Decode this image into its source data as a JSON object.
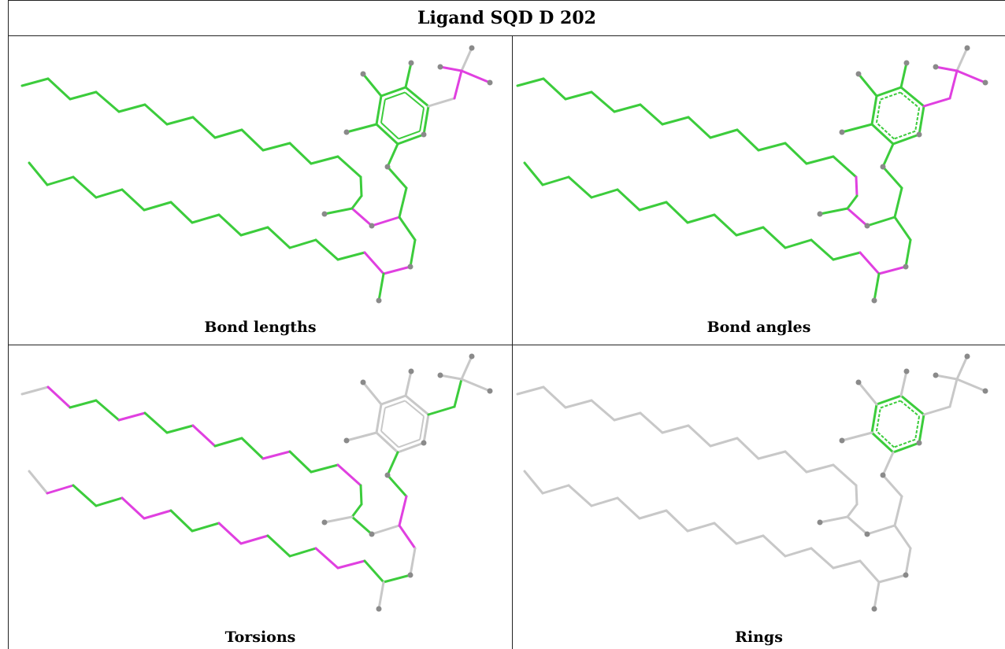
{
  "title": "Ligand SQD D 202",
  "panels": [
    {
      "caption": "Bond lengths",
      "scheme": "lengths"
    },
    {
      "caption": "Bond angles",
      "scheme": "angles"
    },
    {
      "caption": "Torsions",
      "scheme": "torsions"
    },
    {
      "caption": "Rings",
      "scheme": "rings"
    }
  ],
  "colors": {
    "green": "#3ccc3c",
    "magenta": "#e040e0",
    "grey": "#c8c8c8",
    "atom": "#8a8a8a",
    "border": "#222222"
  }
}
